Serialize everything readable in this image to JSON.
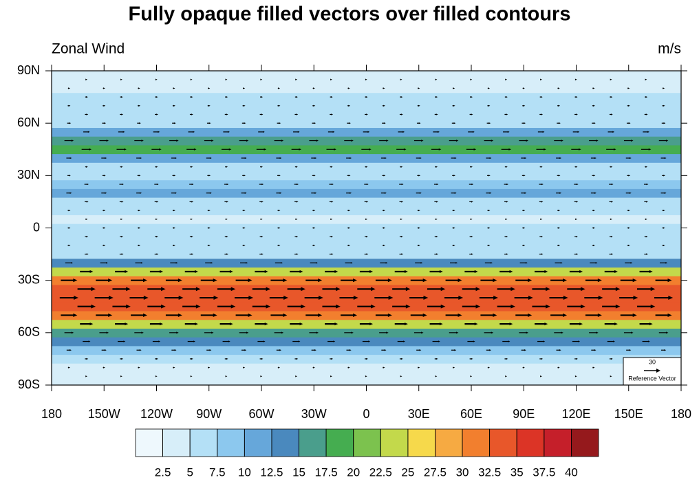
{
  "chart_data": {
    "type": "zonal-contour",
    "title": "Fully opaque filled vectors over filled contours",
    "left_label": "Zonal Wind",
    "right_label": "m/s",
    "xlim": [
      -180,
      180
    ],
    "ylim": [
      -90,
      90
    ],
    "xticks": [
      {
        "value": -180,
        "label": "180"
      },
      {
        "value": -150,
        "label": "150W"
      },
      {
        "value": -120,
        "label": "120W"
      },
      {
        "value": -90,
        "label": "90W"
      },
      {
        "value": -60,
        "label": "60W"
      },
      {
        "value": -30,
        "label": "30W"
      },
      0,
      {
        "value": 30,
        "label": "30E"
      },
      {
        "value": 60,
        "label": "60E"
      },
      {
        "value": 90,
        "label": "90E"
      },
      {
        "value": 120,
        "label": "120E"
      },
      {
        "value": 150,
        "label": "150E"
      },
      {
        "value": 180,
        "label": "180"
      }
    ],
    "yticks": [
      {
        "value": -90,
        "label": "90S"
      },
      {
        "value": -60,
        "label": "60S"
      },
      {
        "value": -30,
        "label": "30S"
      },
      0,
      {
        "value": 30,
        "label": "30N"
      },
      {
        "value": 60,
        "label": "60N"
      },
      {
        "value": 90,
        "label": "90N"
      }
    ],
    "lat": [
      -90,
      -85,
      -80,
      -75,
      -70,
      -65,
      -60,
      -55,
      -50,
      -45,
      -40,
      -35,
      -30,
      -25,
      -20,
      -15,
      -10,
      -5,
      0,
      5,
      10,
      15,
      20,
      25,
      30,
      35,
      40,
      45,
      50,
      55,
      60,
      65,
      70,
      75,
      80,
      85,
      90
    ],
    "values": [
      3,
      3,
      4,
      6,
      9,
      14,
      17,
      24,
      30,
      33,
      34,
      33,
      30,
      24,
      14,
      7,
      5,
      6,
      5,
      4,
      5,
      7,
      10,
      8,
      6,
      5,
      10,
      18,
      17,
      12,
      7,
      6,
      5,
      5,
      4,
      3,
      3
    ],
    "levels": [
      2.5,
      5,
      7.5,
      10,
      12.5,
      15,
      17.5,
      20,
      22.5,
      25,
      27.5,
      30,
      32.5,
      35,
      37.5,
      40
    ],
    "colors": [
      "#d7eef9",
      "#b4e0f6",
      "#8cc8ee",
      "#66a7da",
      "#4a89be",
      "#4a9e8c",
      "#45ad50",
      "#7cc24e",
      "#c3d94b",
      "#f6d94b",
      "#f6aa42",
      "#f27f2e",
      "#e8572a",
      "#dc3426",
      "#c51f2a",
      "#95191c"
    ],
    "colorbar_first_color": "#eef8fd",
    "ref_vector": {
      "magnitude": 30,
      "label": "Reference Vector"
    }
  }
}
